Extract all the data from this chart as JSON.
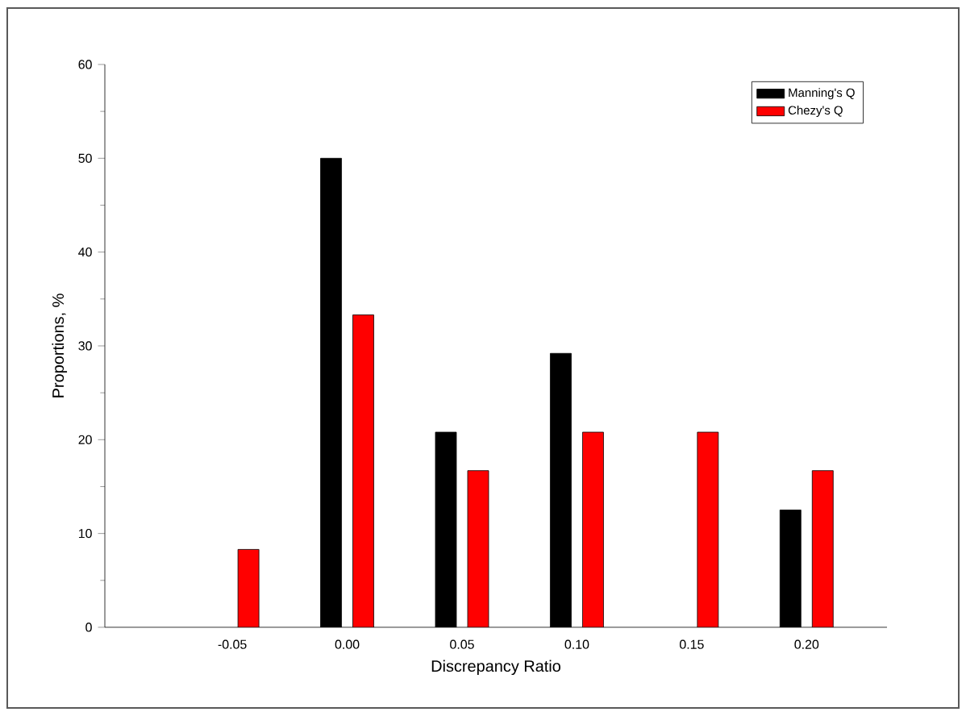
{
  "chart_data": {
    "type": "bar",
    "xlabel": "Discrepancy Ratio",
    "ylabel": "Proportions, %",
    "categories": [
      "-0.05",
      "0.00",
      "0.05",
      "0.10",
      "0.15",
      "0.20"
    ],
    "series": [
      {
        "name": "Manning's Q",
        "color": "#000000",
        "values": [
          null,
          50,
          20.8,
          29.2,
          null,
          12.5
        ]
      },
      {
        "name": "Chezy's Q",
        "color": "#ff0000",
        "values": [
          8.3,
          33.3,
          16.7,
          20.8,
          20.8,
          16.7
        ]
      }
    ],
    "ylim": [
      0,
      60
    ],
    "yticks": [
      0,
      10,
      20,
      30,
      40,
      50,
      60
    ],
    "grid": false,
    "legend": "top right"
  }
}
